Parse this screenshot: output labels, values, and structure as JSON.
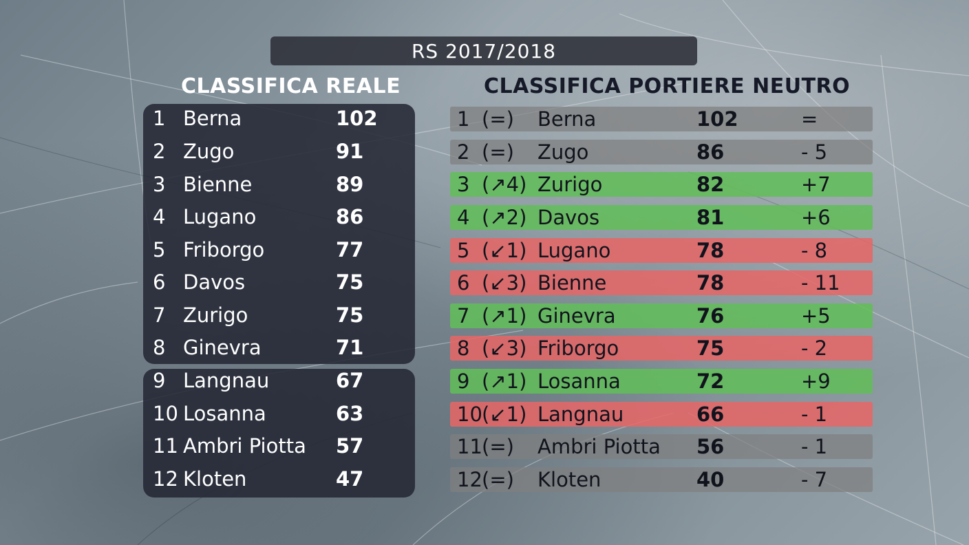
{
  "season": "RS 2017/2018",
  "left_title": "CLASSIFICA REALE",
  "right_title": "CLASSIFICA PORTIERE NEUTRO",
  "real_standings": [
    {
      "pos": "1",
      "team": "Berna",
      "pts": "102"
    },
    {
      "pos": "2",
      "team": "Zugo",
      "pts": "91"
    },
    {
      "pos": "3",
      "team": "Bienne",
      "pts": "89"
    },
    {
      "pos": "4",
      "team": "Lugano",
      "pts": "86"
    },
    {
      "pos": "5",
      "team": "Friborgo",
      "pts": "77"
    },
    {
      "pos": "6",
      "team": "Davos",
      "pts": "75"
    },
    {
      "pos": "7",
      "team": "Zurigo",
      "pts": "75"
    },
    {
      "pos": "8",
      "team": "Ginevra",
      "pts": "71"
    },
    {
      "pos": "9",
      "team": "Langnau",
      "pts": "67"
    },
    {
      "pos": "10",
      "team": "Losanna",
      "pts": "63"
    },
    {
      "pos": "11",
      "team": "Ambri Piotta",
      "pts": "57"
    },
    {
      "pos": "12",
      "team": "Kloten",
      "pts": "47"
    }
  ],
  "neutral_standings": [
    {
      "pos": "1",
      "move": "(=)",
      "team": "Berna",
      "pts": "102",
      "diff": "=",
      "status": "neutral"
    },
    {
      "pos": "2",
      "move": "(=)",
      "team": "Zugo",
      "pts": "86",
      "diff": "- 5",
      "status": "neutral"
    },
    {
      "pos": "3",
      "move": "(↗4)",
      "team": "Zurigo",
      "pts": "82",
      "diff": "+7",
      "status": "up"
    },
    {
      "pos": "4",
      "move": "(↗2)",
      "team": "Davos",
      "pts": "81",
      "diff": "+6",
      "status": "up"
    },
    {
      "pos": "5",
      "move": "(↙1)",
      "team": "Lugano",
      "pts": "78",
      "diff": "- 8",
      "status": "down"
    },
    {
      "pos": "6",
      "move": "(↙3)",
      "team": "Bienne",
      "pts": "78",
      "diff": "- 11",
      "status": "down"
    },
    {
      "pos": "7",
      "move": "(↗1)",
      "team": "Ginevra",
      "pts": "76",
      "diff": "+5",
      "status": "up"
    },
    {
      "pos": "8",
      "move": "(↙3)",
      "team": "Friborgo",
      "pts": "75",
      "diff": "- 2",
      "status": "down"
    },
    {
      "pos": "9",
      "move": "(↗1)",
      "team": "Losanna",
      "pts": "72",
      "diff": "+9",
      "status": "up"
    },
    {
      "pos": "10",
      "move": "(↙1)",
      "team": "Langnau",
      "pts": "66",
      "diff": "- 1",
      "status": "down"
    },
    {
      "pos": "11",
      "move": "(=)",
      "team": "Ambri Piotta",
      "pts": "56",
      "diff": "- 1",
      "status": "neutral"
    },
    {
      "pos": "12",
      "move": "(=)",
      "team": "Kloten",
      "pts": "40",
      "diff": "- 7",
      "status": "neutral"
    }
  ],
  "colors": {
    "up": "#62be58",
    "down": "#e66666",
    "neutral": "#808080",
    "panel": "#242834"
  }
}
